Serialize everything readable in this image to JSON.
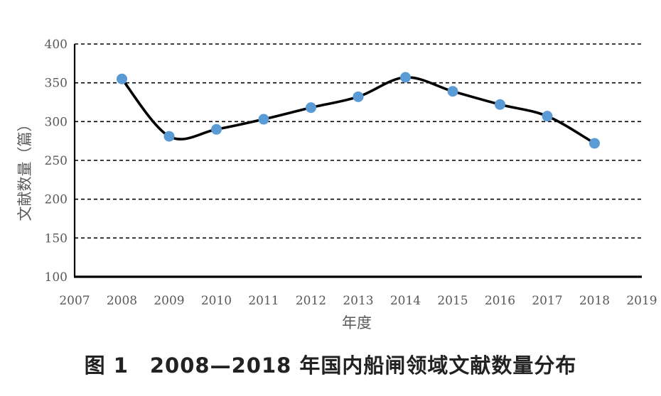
{
  "chart_data": {
    "type": "line",
    "smooth": true,
    "x": [
      2008,
      2009,
      2010,
      2011,
      2012,
      2013,
      2014,
      2015,
      2016,
      2017,
      2018
    ],
    "series": [
      {
        "values": [
          355,
          281,
          290,
          303,
          318,
          332,
          357,
          339,
          322,
          307,
          272
        ]
      }
    ],
    "xlabel": "年度",
    "ylabel": "文献数量（篇）",
    "xlim": [
      2007,
      2019
    ],
    "ylim": [
      100,
      400
    ],
    "xticks": [
      "2007",
      "2008",
      "2009",
      "2010",
      "2011",
      "2012",
      "2013",
      "2014",
      "2015",
      "2016",
      "2017",
      "2018",
      "2019"
    ],
    "yticks": [
      "100",
      "150",
      "200",
      "250",
      "300",
      "350",
      "400"
    ],
    "grid": "horizontal-dashed",
    "legend": "none",
    "colors": {
      "line": "#000000",
      "marker": "#5b9bd5",
      "grid": "#000000",
      "text": "#595959"
    }
  },
  "caption": "图 1　2008—2018 年国内船闸领域文献数量分布"
}
